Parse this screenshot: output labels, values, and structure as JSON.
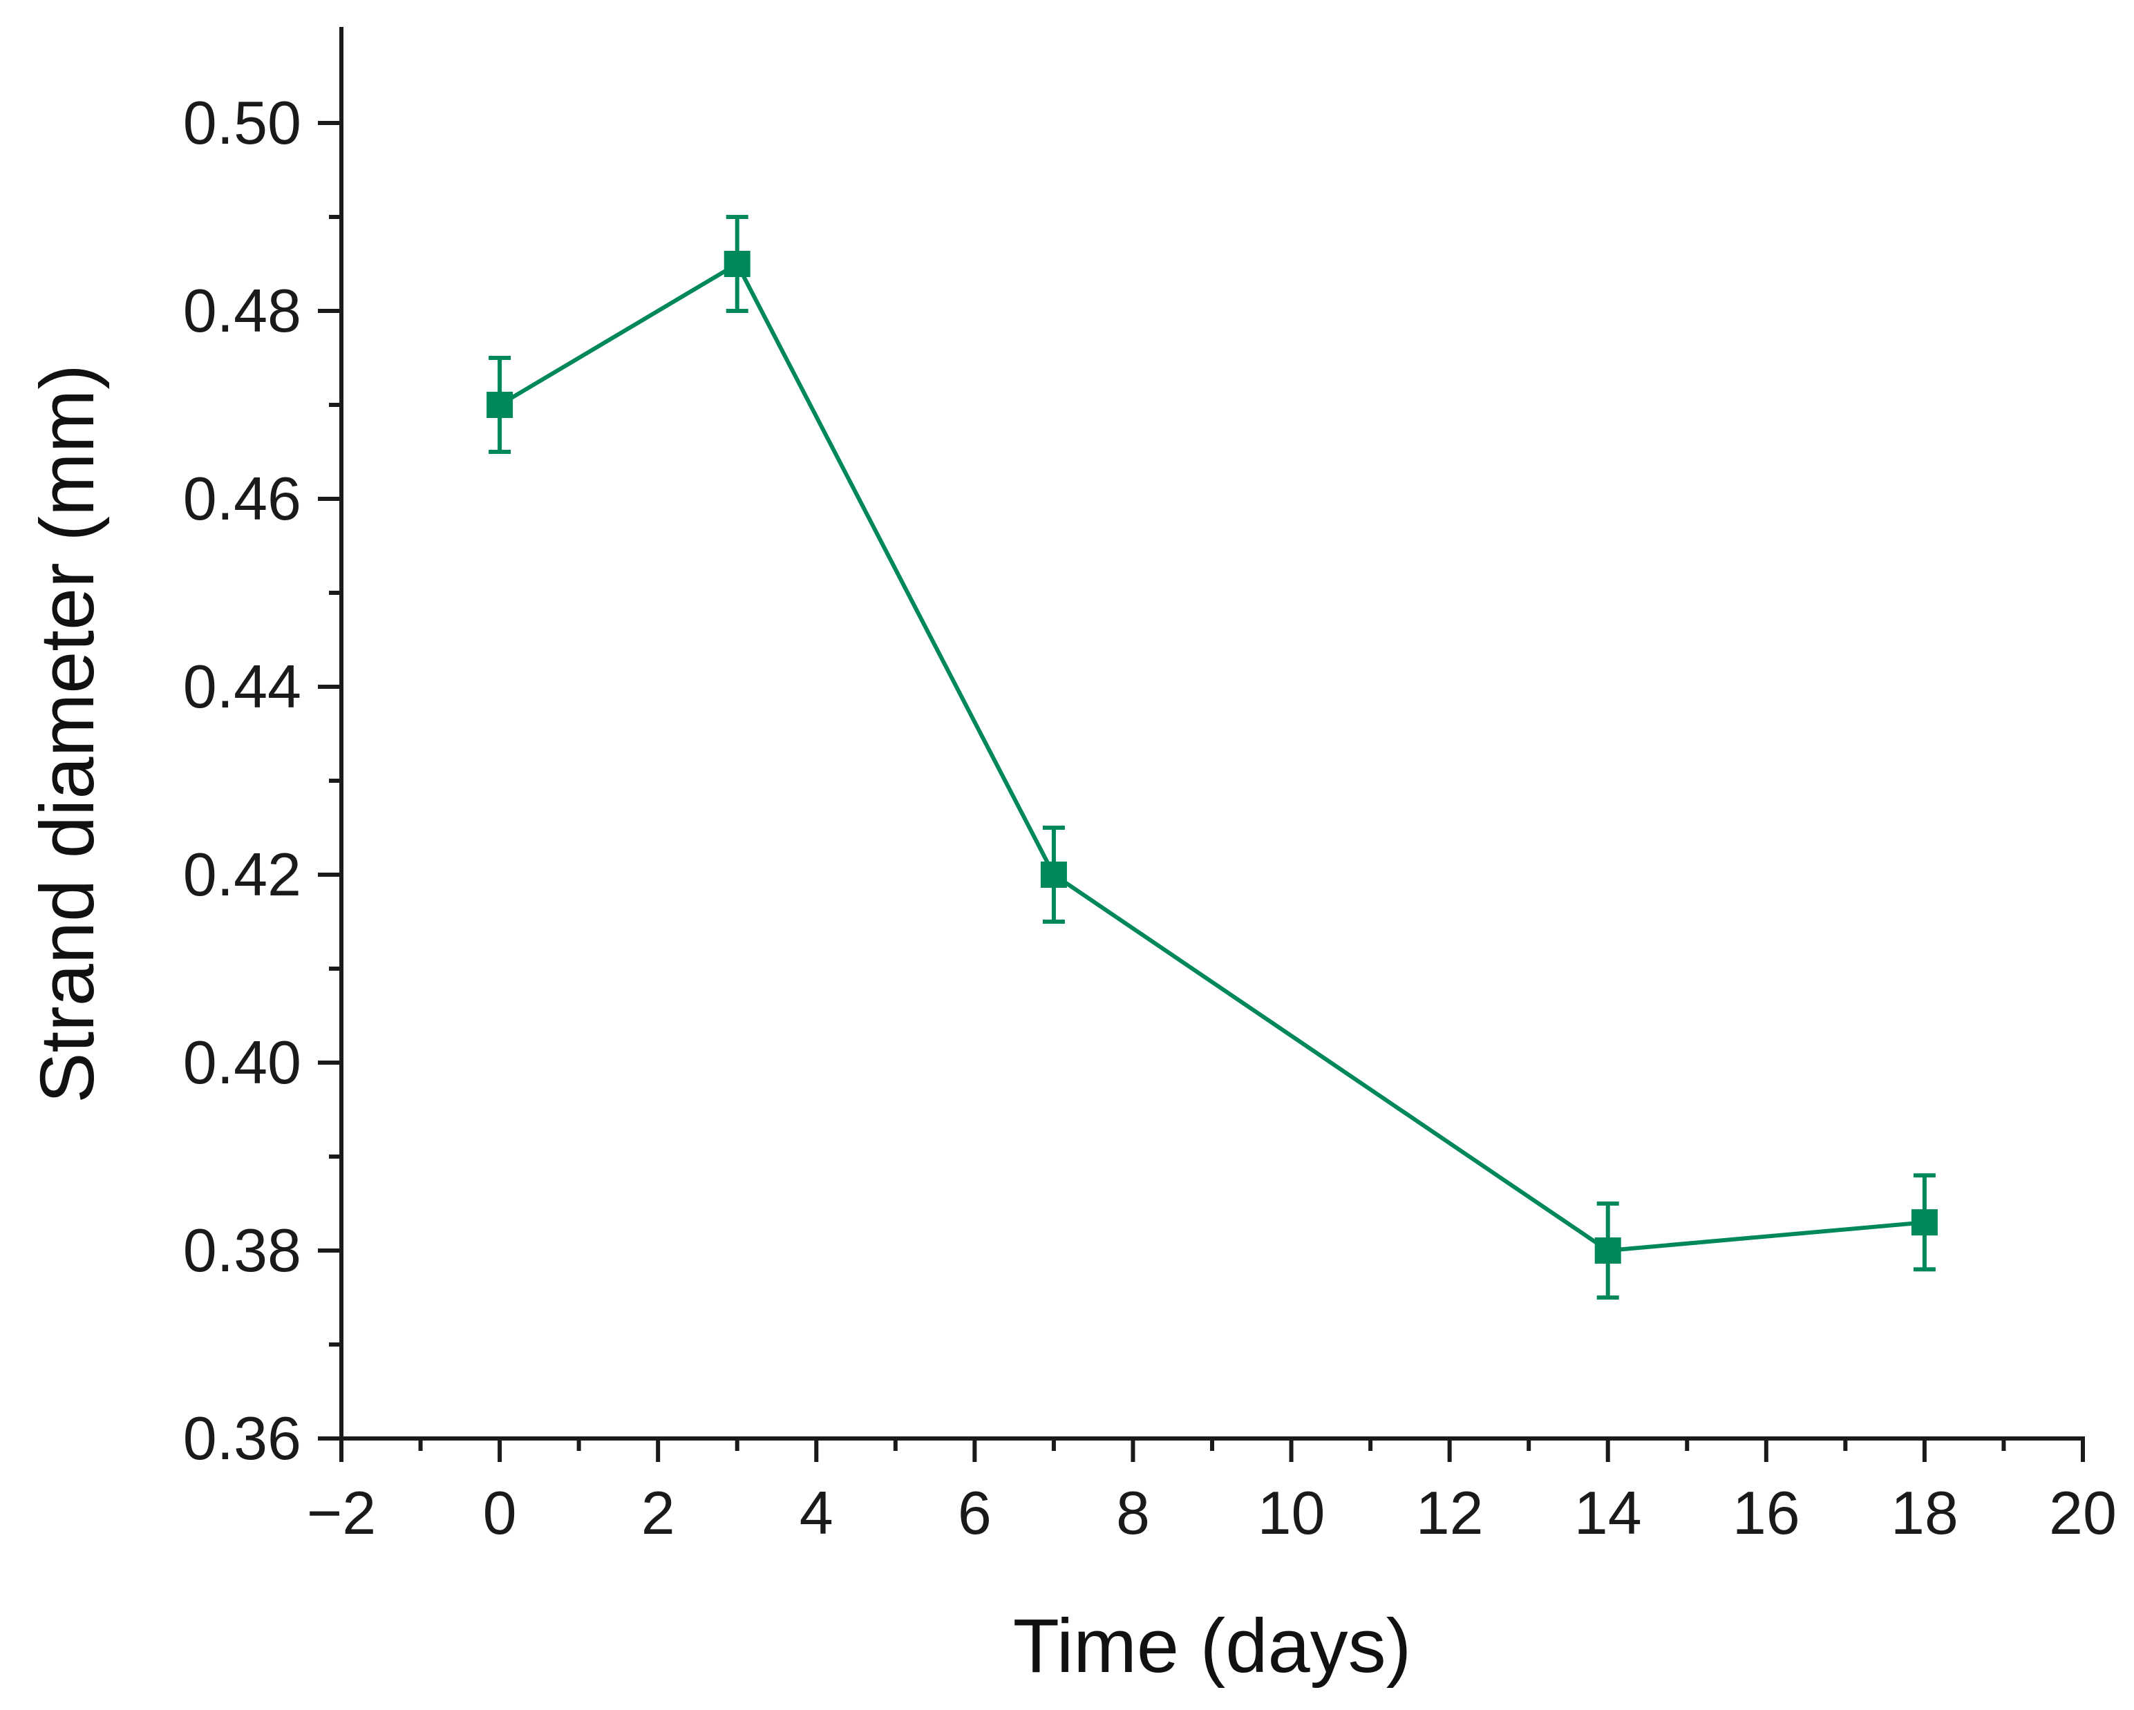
{
  "chart_data": {
    "type": "line",
    "title": "",
    "xlabel": "Time (days)",
    "ylabel": "Strand diameter (mm)",
    "xlim": [
      -2,
      20
    ],
    "ylim": [
      0.36,
      0.51
    ],
    "x_ticks": [
      -2,
      0,
      2,
      4,
      6,
      8,
      10,
      12,
      14,
      16,
      18,
      20
    ],
    "x_tick_labels": [
      "−2",
      "0",
      "2",
      "4",
      "6",
      "8",
      "10",
      "12",
      "14",
      "16",
      "18",
      "20"
    ],
    "y_ticks": [
      0.36,
      0.38,
      0.4,
      0.42,
      0.44,
      0.46,
      0.48,
      0.5
    ],
    "y_tick_labels": [
      "0.36",
      "0.38",
      "0.40",
      "0.42",
      "0.44",
      "0.46",
      "0.48",
      "0.50"
    ],
    "grid": false,
    "legend": null,
    "series": [
      {
        "name": "Strand diameter",
        "color": "#00875a",
        "marker": "square",
        "x": [
          0,
          3,
          7,
          14,
          18
        ],
        "values": [
          0.47,
          0.485,
          0.42,
          0.38,
          0.383
        ],
        "error": [
          0.005,
          0.005,
          0.005,
          0.005,
          0.005
        ]
      }
    ]
  }
}
